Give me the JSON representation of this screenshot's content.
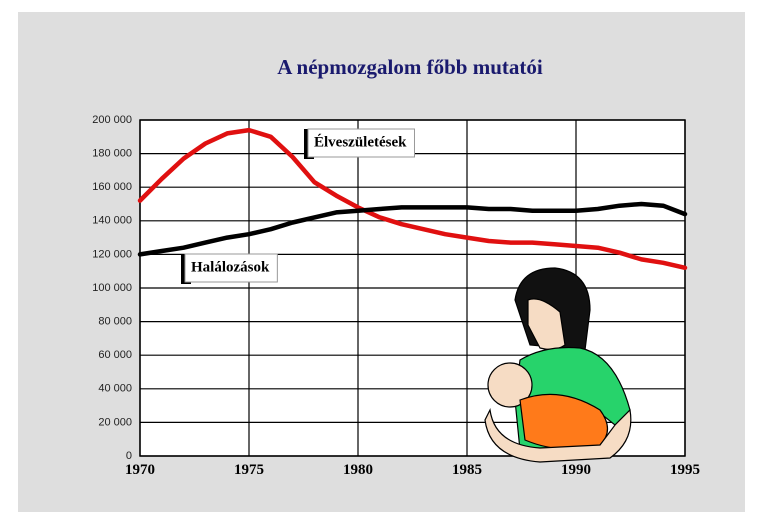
{
  "chart_data": {
    "type": "line",
    "title": "A népmozgalom főbb mutatói",
    "x": [
      1970,
      1971,
      1972,
      1973,
      1974,
      1975,
      1976,
      1977,
      1978,
      1979,
      1980,
      1981,
      1982,
      1983,
      1984,
      1985,
      1986,
      1987,
      1988,
      1989,
      1990,
      1991,
      1992,
      1993,
      1994,
      1995
    ],
    "series": [
      {
        "name": "Élveszületések",
        "color": "#e01010",
        "values": [
          152000,
          165000,
          177000,
          186000,
          192000,
          194000,
          190000,
          178000,
          163000,
          155000,
          148000,
          142000,
          138000,
          135000,
          132000,
          130000,
          128000,
          127000,
          127000,
          126000,
          125000,
          124000,
          121000,
          117000,
          115000,
          112000
        ]
      },
      {
        "name": "Halálozások",
        "color": "#000000",
        "values": [
          120000,
          122000,
          124000,
          127000,
          130000,
          132000,
          135000,
          139000,
          142000,
          145000,
          146000,
          147000,
          148000,
          148000,
          148000,
          148000,
          147000,
          147000,
          146000,
          146000,
          146000,
          147000,
          149000,
          150000,
          149000,
          144000
        ]
      }
    ],
    "xlim": [
      1970,
      1995
    ],
    "xticks": [
      1970,
      1975,
      1980,
      1985,
      1990,
      1995
    ],
    "ylim": [
      0,
      200000
    ],
    "yticks": [
      0,
      {
        "value": 20000,
        "label": "20 000"
      },
      {
        "value": 40000,
        "label": "40 000"
      },
      {
        "value": 60000,
        "label": "60 000"
      },
      {
        "value": 80000,
        "label": "80 000"
      },
      {
        "value": 100000,
        "label": "100 000"
      },
      {
        "value": 120000,
        "label": "120 000"
      },
      {
        "value": 140000,
        "label": "140 000"
      },
      {
        "value": 160000,
        "label": "160 000"
      },
      {
        "value": 180000,
        "label": "180 000"
      },
      {
        "value": 200000,
        "label": "200 000"
      }
    ],
    "grid": true
  }
}
